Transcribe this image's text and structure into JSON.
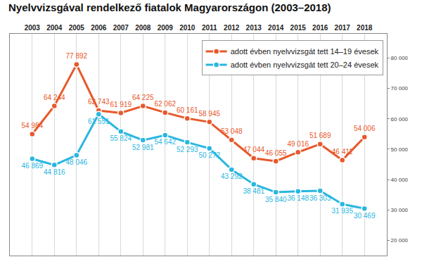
{
  "chart_data": {
    "type": "line",
    "title": "Nyelvvizsgával rendelkező fiatalok Magyarországon (2003–2018)",
    "categories": [
      "2003",
      "2004",
      "2005",
      "2006",
      "2007",
      "2008",
      "2009",
      "2010",
      "2011",
      "2012",
      "2013",
      "2014",
      "2015",
      "2016",
      "2017",
      "2018"
    ],
    "series": [
      {
        "name": "adott évben nyelvvizsgát tett 14–19 évesek",
        "color": "#e8582a",
        "marker": "circle",
        "values": [
          54984,
          64244,
          77892,
          62743,
          61919,
          64225,
          62062,
          60161,
          58945,
          53048,
          47044,
          46055,
          49016,
          51689,
          46411,
          54006
        ],
        "value_labels": [
          "54 984",
          "64 244",
          "77 892",
          "62 743",
          "61 919",
          "64 225",
          "62 062",
          "60 161",
          "58 945",
          "53 048",
          "47 044",
          "46 055",
          "49 016",
          "51 689",
          "46 411",
          "54 006"
        ]
      },
      {
        "name": "adott évben nyelvvizsgát tett 20–24 évesek",
        "color": "#29b6e0",
        "marker": "circle",
        "values": [
          46869,
          44816,
          48046,
          61551,
          55824,
          52981,
          54642,
          52293,
          50272,
          43292,
          38481,
          35840,
          36148,
          36303,
          31935,
          30469
        ],
        "value_labels": [
          "46 869",
          "44 816",
          "48 046",
          "61 551",
          "55 824",
          "52 981",
          "54 642",
          "52 293",
          "50 272",
          "43 292",
          "38 481",
          "35 840",
          "36 148",
          "36 303",
          "31 935",
          "30 469"
        ]
      }
    ],
    "ylim": [
      15000,
      88000
    ],
    "yticks": [
      {
        "value": 20000,
        "label": "20 000"
      },
      {
        "value": 30000,
        "label": "30 000"
      },
      {
        "value": 40000,
        "label": "40 000"
      },
      {
        "value": 50000,
        "label": "50 000"
      },
      {
        "value": 60000,
        "label": "60 000"
      },
      {
        "value": 70000,
        "label": "70 000"
      },
      {
        "value": 80000,
        "label": "80 000"
      }
    ],
    "grid": true,
    "legend": "upper right",
    "data_labels": true
  }
}
